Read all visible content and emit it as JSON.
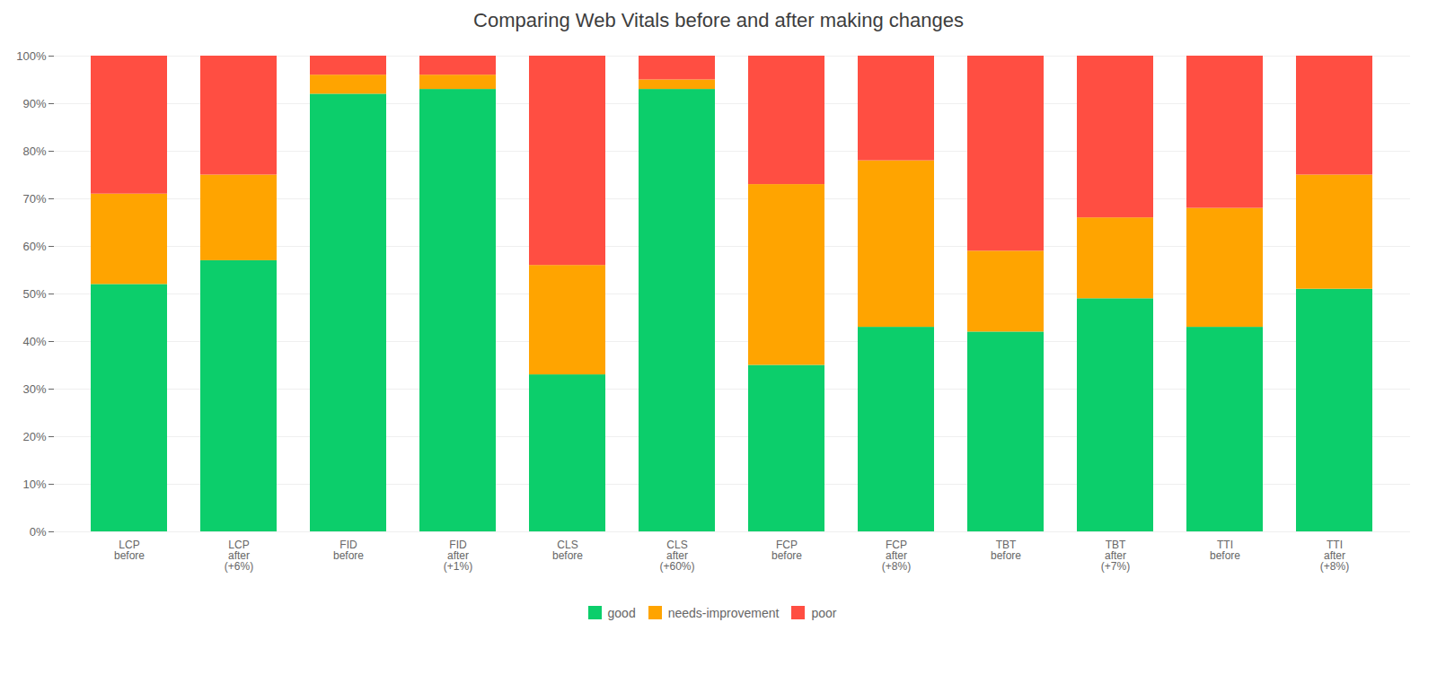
{
  "chart_data": {
    "type": "bar",
    "title": "Comparing Web Vitals before and after making changes",
    "stacked": true,
    "categories": [
      "LCP\nbefore",
      "LCP\nafter\n(+6%)",
      "FID\nbefore",
      "FID\nafter\n(+1%)",
      "CLS\nbefore",
      "CLS\nafter\n(+60%)",
      "FCP\nbefore",
      "FCP\nafter\n(+8%)",
      "TBT\nbefore",
      "TBT\nafter\n(+7%)",
      "TTI\nbefore",
      "TTI\nafter\n(+8%)"
    ],
    "series": [
      {
        "name": "good",
        "color": "#0CCE6B",
        "values": [
          52,
          57,
          92,
          93,
          33,
          93,
          35,
          43,
          42,
          49,
          43,
          51
        ]
      },
      {
        "name": "needs-improvement",
        "color": "#FFA400",
        "values": [
          19,
          18,
          4,
          3,
          23,
          2,
          38,
          35,
          17,
          17,
          25,
          24
        ]
      },
      {
        "name": "poor",
        "color": "#FF4E42",
        "values": [
          29,
          25,
          4,
          4,
          44,
          5,
          27,
          22,
          41,
          34,
          32,
          25
        ]
      }
    ],
    "ylim": [
      0,
      100
    ],
    "yticks": [
      {
        "value": 0,
        "label": "0%"
      },
      {
        "value": 10,
        "label": "10%"
      },
      {
        "value": 20,
        "label": "20%"
      },
      {
        "value": 30,
        "label": "30%"
      },
      {
        "value": 40,
        "label": "40%"
      },
      {
        "value": 50,
        "label": "50%"
      },
      {
        "value": 60,
        "label": "60%"
      },
      {
        "value": 70,
        "label": "70%"
      },
      {
        "value": 80,
        "label": "80%"
      },
      {
        "value": 90,
        "label": "90%"
      },
      {
        "value": 100,
        "label": "100%"
      }
    ],
    "grid": true,
    "legend": "bottom"
  }
}
